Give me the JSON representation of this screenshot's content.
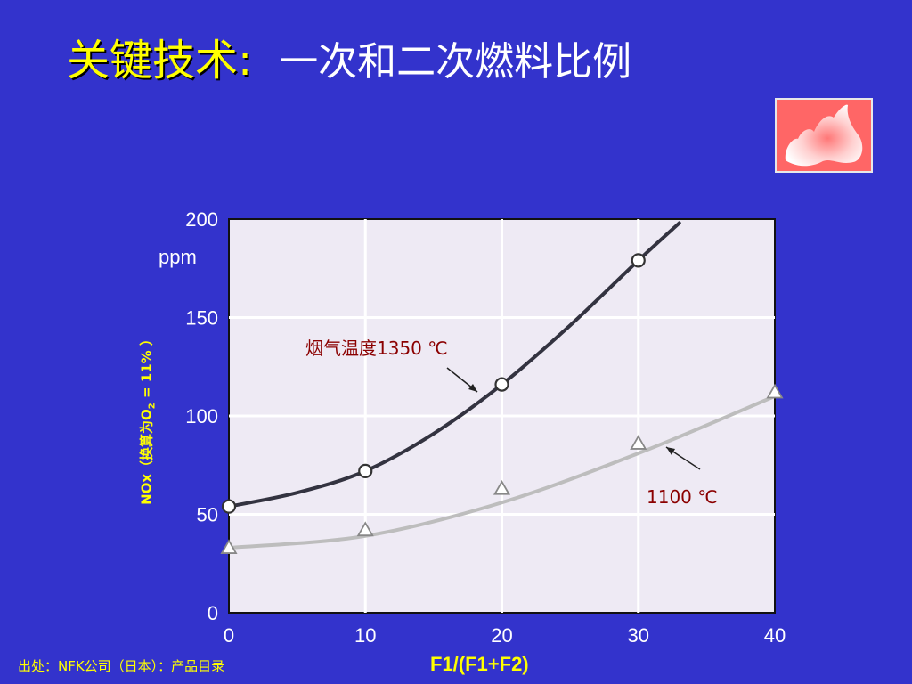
{
  "title": {
    "part1": "关键技术:",
    "part2": "一次和二次燃料比例"
  },
  "source": "出处：NFK公司（日本）：产品目录",
  "colors": {
    "background": "#3333cc",
    "title_accent": "#ffff00",
    "series1": "#333340",
    "series2": "#bdbdbd",
    "plot_bg": "#eeeaf4",
    "annotation": "#8b0000"
  },
  "chart_data": {
    "type": "line",
    "xlabel": "F1/(F1+F2)",
    "ylabel_main": "NOx（换算为O",
    "ylabel_sub": "2",
    "ylabel_tail": " = 11% ）",
    "y_unit": "ppm",
    "xlim": [
      0,
      40
    ],
    "ylim": [
      0,
      200
    ],
    "x_ticks": [
      "0",
      "10",
      "20",
      "30",
      "40"
    ],
    "y_ticks": [
      "0",
      "50",
      "100",
      "150",
      "200"
    ],
    "grid": true,
    "series": [
      {
        "name": "烟气温度1350 ℃",
        "marker": "circle",
        "x": [
          0,
          10,
          20,
          30
        ],
        "y": [
          54,
          72,
          116,
          179
        ],
        "curve_x": [
          0,
          5,
          10,
          15,
          20,
          25,
          30,
          33
        ],
        "curve_y": [
          54,
          61,
          72,
          91,
          116,
          146,
          179,
          198
        ]
      },
      {
        "name": "1100 ℃",
        "marker": "triangle",
        "x": [
          0,
          10,
          20,
          30,
          40
        ],
        "y": [
          33,
          42,
          63,
          86,
          112
        ],
        "curve_x": [
          0,
          10,
          20,
          30,
          40
        ],
        "curve_y": [
          33,
          39,
          56,
          81,
          110
        ]
      }
    ]
  }
}
